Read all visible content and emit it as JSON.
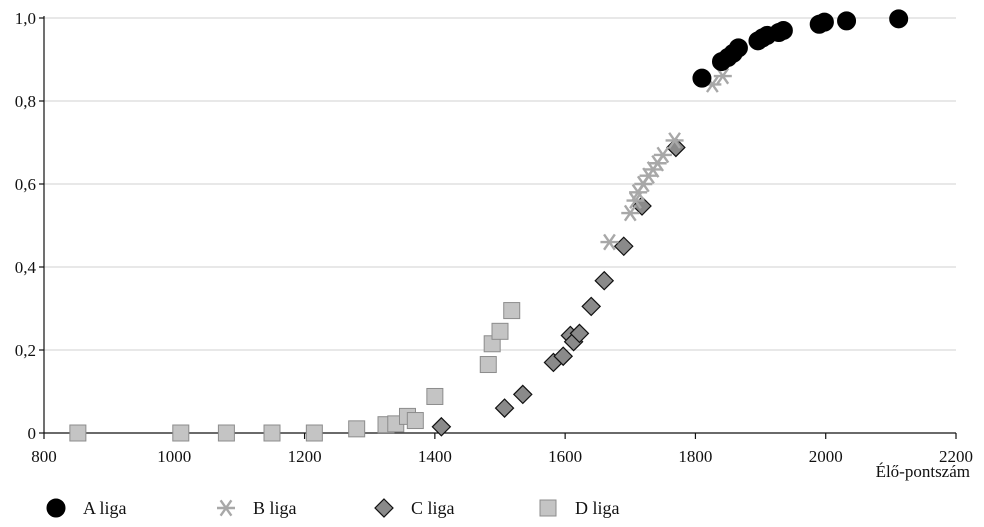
{
  "chart_data": {
    "type": "scatter",
    "xlabel": "Élő-pontszám",
    "ylabel": "",
    "xlim": [
      800,
      2200
    ],
    "ylim": [
      0,
      1.0
    ],
    "x_ticks": [
      800,
      1000,
      1200,
      1400,
      1600,
      1800,
      2000,
      2200
    ],
    "y_ticks": [
      0,
      0.2,
      0.4,
      0.6,
      0.8,
      1.0
    ],
    "x_tick_labels": [
      "800",
      "1000",
      "1200",
      "1400",
      "1600",
      "1800",
      "2000",
      "2200"
    ],
    "y_tick_labels": [
      "0",
      "0,2",
      "0,4",
      "0,6",
      "0,8",
      "1,0"
    ],
    "grid": "horizontal",
    "legend_position": "bottom",
    "series": [
      {
        "name": "A liga",
        "marker": "circle",
        "color": "#000000",
        "points": [
          [
            1810,
            0.855
          ],
          [
            1840,
            0.895
          ],
          [
            1850,
            0.905
          ],
          [
            1858,
            0.915
          ],
          [
            1866,
            0.928
          ],
          [
            1896,
            0.945
          ],
          [
            1903,
            0.952
          ],
          [
            1910,
            0.958
          ],
          [
            1928,
            0.965
          ],
          [
            1935,
            0.97
          ],
          [
            1990,
            0.985
          ],
          [
            1998,
            0.99
          ],
          [
            2032,
            0.993
          ],
          [
            2112,
            0.998
          ]
        ]
      },
      {
        "name": "B liga",
        "marker": "asterisk",
        "color": "#a8a8a8",
        "points": [
          [
            1668,
            0.46
          ],
          [
            1700,
            0.53
          ],
          [
            1708,
            0.56
          ],
          [
            1712,
            0.58
          ],
          [
            1720,
            0.6
          ],
          [
            1728,
            0.62
          ],
          [
            1735,
            0.635
          ],
          [
            1742,
            0.65
          ],
          [
            1750,
            0.67
          ],
          [
            1768,
            0.705
          ],
          [
            1826,
            0.84
          ],
          [
            1842,
            0.86
          ]
        ]
      },
      {
        "name": "C liga",
        "marker": "diamond",
        "color": "#8a8a8a",
        "points": [
          [
            1410,
            0.015
          ],
          [
            1507,
            0.06
          ],
          [
            1535,
            0.093
          ],
          [
            1582,
            0.17
          ],
          [
            1597,
            0.185
          ],
          [
            1608,
            0.235
          ],
          [
            1613,
            0.22
          ],
          [
            1622,
            0.24
          ],
          [
            1640,
            0.305
          ],
          [
            1660,
            0.367
          ],
          [
            1690,
            0.45
          ],
          [
            1718,
            0.547
          ],
          [
            1770,
            0.688
          ]
        ]
      },
      {
        "name": "D liga",
        "marker": "square",
        "color": "#c4c4c4",
        "points": [
          [
            852,
            0.0
          ],
          [
            1010,
            0.0
          ],
          [
            1080,
            0.0
          ],
          [
            1150,
            0.0
          ],
          [
            1215,
            0.0
          ],
          [
            1280,
            0.01
          ],
          [
            1325,
            0.02
          ],
          [
            1340,
            0.022
          ],
          [
            1358,
            0.04
          ],
          [
            1370,
            0.03
          ],
          [
            1400,
            0.088
          ],
          [
            1482,
            0.165
          ],
          [
            1488,
            0.215
          ],
          [
            1500,
            0.245
          ],
          [
            1518,
            0.295
          ]
        ]
      }
    ]
  }
}
